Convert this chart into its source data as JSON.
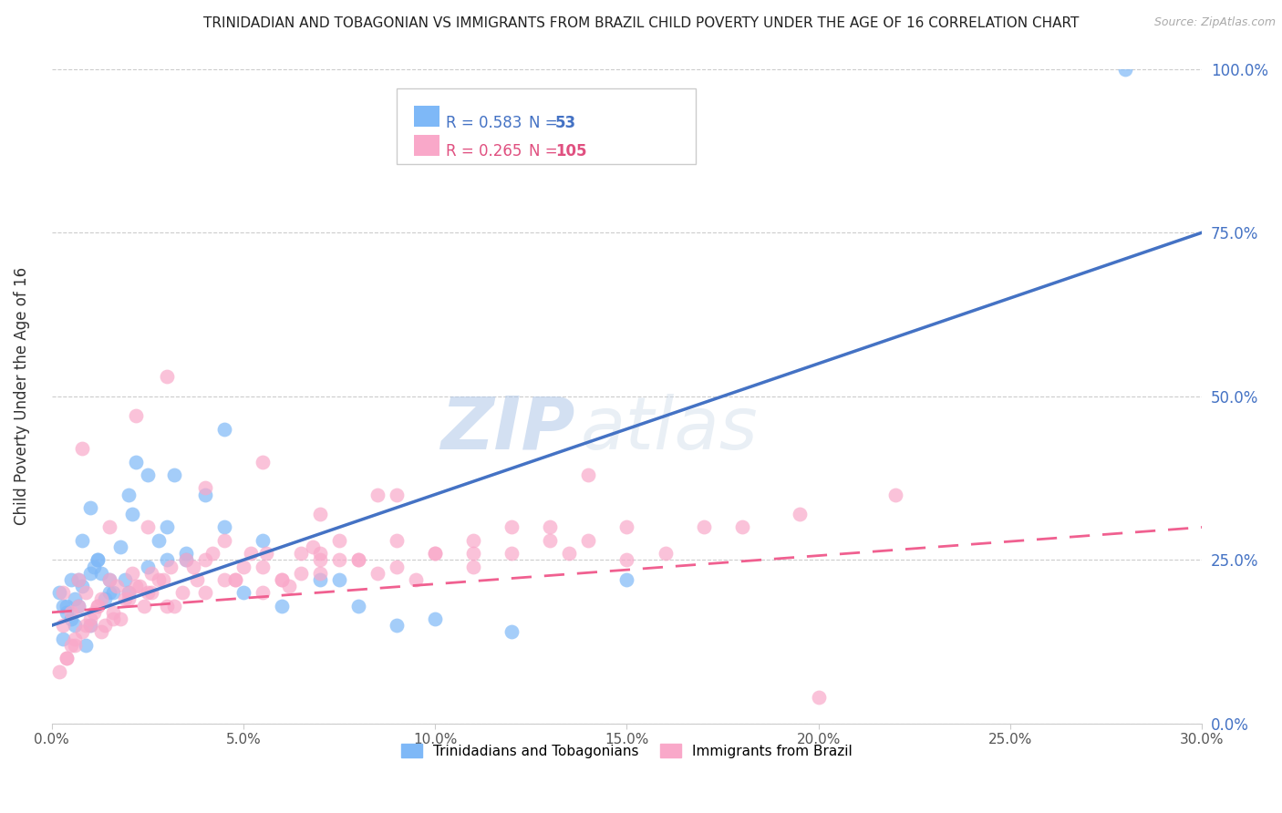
{
  "title": "TRINIDADIAN AND TOBAGONIAN VS IMMIGRANTS FROM BRAZIL CHILD POVERTY UNDER THE AGE OF 16 CORRELATION CHART",
  "source": "Source: ZipAtlas.com",
  "ylabel": "Child Poverty Under the Age of 16",
  "xlabel_ticks": [
    "0.0%",
    "5.0%",
    "10.0%",
    "15.0%",
    "20.0%",
    "25.0%",
    "30.0%"
  ],
  "xlabel_vals": [
    0.0,
    5.0,
    10.0,
    15.0,
    20.0,
    25.0,
    30.0
  ],
  "ylabel_ticks": [
    "0.0%",
    "25.0%",
    "50.0%",
    "75.0%",
    "100.0%"
  ],
  "ylabel_vals": [
    0.0,
    25.0,
    50.0,
    75.0,
    100.0
  ],
  "xlim": [
    0,
    30
  ],
  "ylim": [
    0,
    100
  ],
  "legend1_label": "Trinidadians and Tobagonians",
  "legend2_label": "Immigrants from Brazil",
  "R1": 0.583,
  "N1": 53,
  "R2": 0.265,
  "N2": 105,
  "color1": "#7EB8F7",
  "color2": "#F9A8C9",
  "line1_color": "#4472C4",
  "line2_color": "#F06090",
  "watermark_zip": "ZIP",
  "watermark_atlas": "atlas",
  "blue_scatter_x": [
    0.5,
    0.8,
    1.0,
    1.2,
    1.5,
    0.3,
    0.6,
    0.9,
    1.3,
    1.8,
    2.0,
    2.2,
    2.5,
    3.0,
    3.5,
    0.4,
    0.7,
    1.1,
    1.6,
    2.1,
    2.8,
    3.2,
    4.0,
    4.5,
    5.0,
    6.0,
    7.0,
    8.0,
    9.0,
    10.0,
    0.2,
    0.4,
    0.6,
    0.8,
    1.0,
    1.2,
    1.5,
    2.0,
    2.5,
    3.5,
    4.5,
    5.5,
    7.5,
    12.0,
    15.0,
    0.3,
    0.5,
    0.7,
    1.0,
    1.4,
    1.9,
    3.0,
    28.0
  ],
  "blue_scatter_y": [
    22,
    28,
    33,
    25,
    20,
    18,
    15,
    12,
    23,
    27,
    35,
    40,
    38,
    30,
    25,
    18,
    22,
    24,
    20,
    32,
    28,
    38,
    35,
    45,
    20,
    18,
    22,
    18,
    15,
    16,
    20,
    17,
    19,
    21,
    23,
    25,
    22,
    20,
    24,
    26,
    30,
    28,
    22,
    14,
    22,
    13,
    16,
    18,
    15,
    19,
    22,
    25,
    100
  ],
  "pink_scatter_x": [
    0.3,
    0.5,
    0.7,
    0.9,
    1.1,
    1.3,
    1.5,
    1.8,
    2.0,
    2.3,
    2.6,
    3.0,
    3.5,
    4.0,
    4.5,
    5.0,
    5.5,
    6.0,
    6.5,
    7.0,
    7.5,
    8.0,
    9.0,
    10.0,
    11.0,
    12.0,
    13.0,
    14.0,
    15.0,
    0.2,
    0.4,
    0.6,
    0.8,
    1.0,
    1.2,
    1.4,
    1.6,
    1.9,
    2.2,
    2.5,
    2.8,
    3.2,
    3.7,
    4.2,
    4.8,
    5.5,
    6.2,
    7.0,
    8.0,
    9.5,
    11.0,
    13.5,
    16.0,
    18.0,
    0.3,
    0.5,
    0.7,
    1.0,
    1.3,
    1.7,
    2.1,
    2.6,
    3.1,
    3.8,
    4.5,
    5.2,
    6.0,
    7.0,
    8.5,
    10.0,
    12.0,
    0.4,
    0.6,
    0.9,
    1.2,
    1.6,
    2.0,
    2.4,
    2.9,
    3.4,
    4.0,
    4.8,
    5.6,
    6.5,
    7.5,
    9.0,
    11.0,
    13.0,
    15.0,
    17.0,
    19.5,
    22.0,
    0.8,
    1.5,
    2.2,
    3.0,
    4.0,
    5.5,
    7.0,
    9.0,
    20.0,
    8.5,
    14.0,
    2.5,
    6.8
  ],
  "pink_scatter_y": [
    15,
    12,
    18,
    20,
    17,
    14,
    22,
    16,
    19,
    21,
    23,
    18,
    25,
    20,
    22,
    24,
    20,
    22,
    26,
    23,
    28,
    25,
    24,
    26,
    28,
    26,
    30,
    28,
    25,
    8,
    10,
    12,
    14,
    16,
    18,
    15,
    17,
    19,
    21,
    20,
    22,
    18,
    24,
    26,
    22,
    24,
    21,
    26,
    25,
    22,
    24,
    26,
    26,
    30,
    20,
    17,
    22,
    15,
    19,
    21,
    23,
    20,
    24,
    22,
    28,
    26,
    22,
    25,
    23,
    26,
    30,
    10,
    13,
    15,
    18,
    16,
    20,
    18,
    22,
    20,
    25,
    22,
    26,
    23,
    25,
    28,
    26,
    28,
    30,
    30,
    32,
    35,
    42,
    30,
    47,
    53,
    36,
    40,
    32,
    35,
    4,
    35,
    38,
    30,
    27
  ],
  "blue_line_x": [
    0,
    30
  ],
  "blue_line_y": [
    15,
    75
  ],
  "pink_line_x": [
    0,
    30
  ],
  "pink_line_y": [
    17,
    30
  ]
}
